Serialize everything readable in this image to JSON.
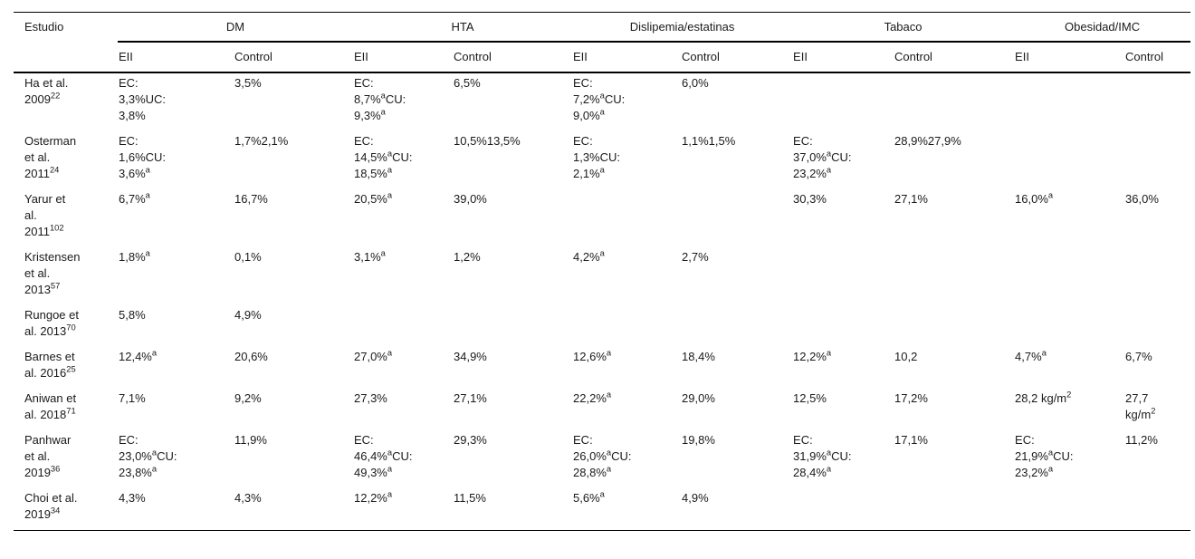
{
  "page": {
    "background_color": "#ffffff",
    "text_color": "#1a1a1a",
    "rule_color": "#000000"
  },
  "table": {
    "title_col_header": "Estudio",
    "groups": [
      "DM",
      "HTA",
      "Dislipemia/estatinas",
      "Tabaco",
      "Obesidad/IMC"
    ],
    "sub_eii": "EII",
    "sub_control": "Control",
    "rows": [
      {
        "study": [
          {
            "t": "Ha et al. 2009"
          },
          {
            "t": "22",
            "sup": true
          }
        ],
        "cells": [
          [
            {
              "t": "EC: 3,3%UC: 3,8%"
            }
          ],
          [
            {
              "t": "3,5%"
            }
          ],
          [
            {
              "t": "EC: 8,7%"
            },
            {
              "t": "a",
              "sup": true
            },
            {
              "t": "CU: 9,3%"
            },
            {
              "t": "a",
              "sup": true
            }
          ],
          [
            {
              "t": "6,5%"
            }
          ],
          [
            {
              "t": "EC: 7,2%"
            },
            {
              "t": "a",
              "sup": true
            },
            {
              "t": "CU: 9,0%"
            },
            {
              "t": "a",
              "sup": true
            }
          ],
          [
            {
              "t": "6,0%"
            }
          ],
          [],
          [],
          [],
          []
        ]
      },
      {
        "study": [
          {
            "t": "Osterman et al. 2011"
          },
          {
            "t": "24",
            "sup": true
          }
        ],
        "cells": [
          [
            {
              "t": "EC: 1,6%CU: 3,6%"
            },
            {
              "t": "a",
              "sup": true
            }
          ],
          [
            {
              "t": "1,7%2,1%"
            }
          ],
          [
            {
              "t": "EC: 14,5%"
            },
            {
              "t": "a",
              "sup": true
            },
            {
              "t": "CU: 18,5%"
            },
            {
              "t": "a",
              "sup": true
            }
          ],
          [
            {
              "t": "10,5%13,5%"
            }
          ],
          [
            {
              "t": "EC: 1,3%CU: 2,1%"
            },
            {
              "t": "a",
              "sup": true
            }
          ],
          [
            {
              "t": "1,1%1,5%"
            }
          ],
          [
            {
              "t": "EC: 37,0%"
            },
            {
              "t": "a",
              "sup": true
            },
            {
              "t": "CU: 23,2%"
            },
            {
              "t": "a",
              "sup": true
            }
          ],
          [
            {
              "t": "28,9%27,9%"
            }
          ],
          [],
          []
        ]
      },
      {
        "study": [
          {
            "t": "Yarur et al. 2011"
          },
          {
            "t": "102",
            "sup": true
          }
        ],
        "cells": [
          [
            {
              "t": "6,7%"
            },
            {
              "t": "a",
              "sup": true
            }
          ],
          [
            {
              "t": "16,7%"
            }
          ],
          [
            {
              "t": "20,5%"
            },
            {
              "t": "a",
              "sup": true
            }
          ],
          [
            {
              "t": "39,0%"
            }
          ],
          [],
          [],
          [
            {
              "t": "30,3%"
            }
          ],
          [
            {
              "t": "27,1%"
            }
          ],
          [
            {
              "t": "16,0%"
            },
            {
              "t": "a",
              "sup": true
            }
          ],
          [
            {
              "t": "36,0%"
            }
          ]
        ]
      },
      {
        "study": [
          {
            "t": "Kristensen et al. 2013"
          },
          {
            "t": "57",
            "sup": true
          }
        ],
        "cells": [
          [
            {
              "t": "1,8%"
            },
            {
              "t": "a",
              "sup": true
            }
          ],
          [
            {
              "t": "0,1%"
            }
          ],
          [
            {
              "t": "3,1%"
            },
            {
              "t": "a",
              "sup": true
            }
          ],
          [
            {
              "t": "1,2%"
            }
          ],
          [
            {
              "t": "4,2%"
            },
            {
              "t": "a",
              "sup": true
            }
          ],
          [
            {
              "t": "2,7%"
            }
          ],
          [],
          [],
          [],
          []
        ]
      },
      {
        "study": [
          {
            "t": "Rungoe et al. 2013"
          },
          {
            "t": "70",
            "sup": true
          }
        ],
        "cells": [
          [
            {
              "t": "5,8%"
            }
          ],
          [
            {
              "t": "4,9%"
            }
          ],
          [],
          [],
          [],
          [],
          [],
          [],
          [],
          []
        ]
      },
      {
        "study": [
          {
            "t": "Barnes et al. 2016"
          },
          {
            "t": "25",
            "sup": true
          }
        ],
        "cells": [
          [
            {
              "t": "12,4%"
            },
            {
              "t": "a",
              "sup": true
            }
          ],
          [
            {
              "t": "20,6%"
            }
          ],
          [
            {
              "t": "27,0%"
            },
            {
              "t": "a",
              "sup": true
            }
          ],
          [
            {
              "t": "34,9%"
            }
          ],
          [
            {
              "t": "12,6%"
            },
            {
              "t": "a",
              "sup": true
            }
          ],
          [
            {
              "t": "18,4%"
            }
          ],
          [
            {
              "t": "12,2%"
            },
            {
              "t": "a",
              "sup": true
            }
          ],
          [
            {
              "t": "10,2"
            }
          ],
          [
            {
              "t": "4,7%"
            },
            {
              "t": "a",
              "sup": true
            }
          ],
          [
            {
              "t": "6,7%"
            }
          ]
        ]
      },
      {
        "study": [
          {
            "t": "Aniwan et al. 2018"
          },
          {
            "t": "71",
            "sup": true
          }
        ],
        "cells": [
          [
            {
              "t": "7,1%"
            }
          ],
          [
            {
              "t": "9,2%"
            }
          ],
          [
            {
              "t": "27,3%"
            }
          ],
          [
            {
              "t": "27,1%"
            }
          ],
          [
            {
              "t": "22,2%"
            },
            {
              "t": "a",
              "sup": true
            }
          ],
          [
            {
              "t": "29,0%"
            }
          ],
          [
            {
              "t": "12,5%"
            }
          ],
          [
            {
              "t": "17,2%"
            }
          ],
          [
            {
              "t": "28,2 kg/m"
            },
            {
              "t": "2",
              "sup": true
            }
          ],
          [
            {
              "t": "27,7 kg/m"
            },
            {
              "t": "2",
              "sup": true
            }
          ]
        ]
      },
      {
        "study": [
          {
            "t": "Panhwar et al. 2019"
          },
          {
            "t": "36",
            "sup": true
          }
        ],
        "cells": [
          [
            {
              "t": "EC: 23,0%"
            },
            {
              "t": "a",
              "sup": true
            },
            {
              "t": "CU: 23,8%"
            },
            {
              "t": "a",
              "sup": true
            }
          ],
          [
            {
              "t": "11,9%"
            }
          ],
          [
            {
              "t": "EC: 46,4%"
            },
            {
              "t": "a",
              "sup": true
            },
            {
              "t": "CU: 49,3%"
            },
            {
              "t": "a",
              "sup": true
            }
          ],
          [
            {
              "t": "29,3%"
            }
          ],
          [
            {
              "t": "EC: 26,0%"
            },
            {
              "t": "a",
              "sup": true
            },
            {
              "t": "CU: 28,8%"
            },
            {
              "t": "a",
              "sup": true
            }
          ],
          [
            {
              "t": "19,8%"
            }
          ],
          [
            {
              "t": "EC: 31,9%"
            },
            {
              "t": "a",
              "sup": true
            },
            {
              "t": "CU: 28,4%"
            },
            {
              "t": "a",
              "sup": true
            }
          ],
          [
            {
              "t": "17,1%"
            }
          ],
          [
            {
              "t": "EC: 21,9%"
            },
            {
              "t": "a",
              "sup": true
            },
            {
              "t": "CU: 23,2%"
            },
            {
              "t": "a",
              "sup": true
            }
          ],
          [
            {
              "t": "11,2%"
            }
          ]
        ]
      },
      {
        "study": [
          {
            "t": "Choi et al. 2019"
          },
          {
            "t": "34",
            "sup": true
          }
        ],
        "cells": [
          [
            {
              "t": "4,3%"
            }
          ],
          [
            {
              "t": "4,3%"
            }
          ],
          [
            {
              "t": "12,2%"
            },
            {
              "t": "a",
              "sup": true
            }
          ],
          [
            {
              "t": "11,5%"
            }
          ],
          [
            {
              "t": "5,6%"
            },
            {
              "t": "a",
              "sup": true
            }
          ],
          [
            {
              "t": "4,9%"
            }
          ],
          [],
          [],
          [],
          []
        ]
      }
    ]
  }
}
